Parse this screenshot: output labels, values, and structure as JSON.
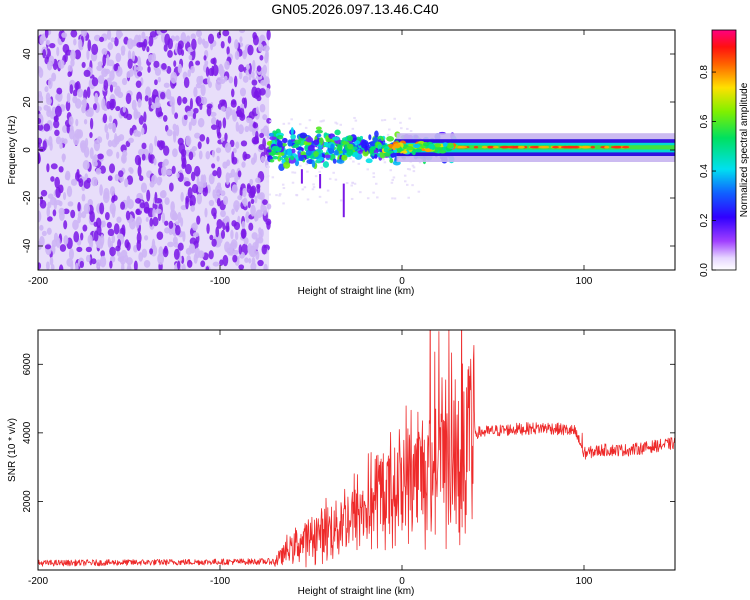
{
  "title": "GN05.2026.097.13.46.C40",
  "chart_data": [
    {
      "type": "heatmap",
      "title": "GN05.2026.097.13.46.C40",
      "xlabel": "Height of straight line (km)",
      "ylabel": "Frequency (Hz)",
      "xlim": [
        -200,
        150
      ],
      "ylim": [
        -50,
        50
      ],
      "xticks": [
        -200,
        -100,
        0,
        100
      ],
      "yticks": [
        -40,
        -20,
        0,
        20,
        40
      ],
      "colorbar": {
        "label": "Normalized spectral amplitude",
        "range": [
          0,
          0.97
        ],
        "ticks": [
          0.0,
          0.2,
          0.4,
          0.6,
          0.8
        ],
        "colormap": "rainbow (white-purple-blue-cyan-green-yellow-red-pink)"
      },
      "regions": [
        {
          "x": [
            -200,
            -73
          ],
          "description": "scattered low-amplitude noise across all frequencies",
          "amplitude": 0.1
        },
        {
          "x": [
            -73,
            30
          ],
          "description": "turbulent signal near 0 Hz, spread roughly -12 to +8 Hz",
          "amplitude": 0.45
        },
        {
          "x": [
            30,
            150
          ],
          "description": "narrow strong band centered near 1 Hz",
          "amplitude": 0.9
        }
      ]
    },
    {
      "type": "line",
      "xlabel": "Height of straight line (km)",
      "ylabel": "SNR (10 * v/v)",
      "xlim": [
        -200,
        150
      ],
      "ylim": [
        0,
        7000
      ],
      "xticks": [
        -200,
        -100,
        0,
        100
      ],
      "yticks": [
        2000,
        4000,
        6000
      ],
      "color": "#ee2a2a",
      "envelope": {
        "x": [
          -200,
          -70,
          -60,
          -40,
          -20,
          0,
          20,
          40,
          60,
          80,
          95,
          100,
          110,
          125,
          150
        ],
        "y": [
          200,
          250,
          700,
          1200,
          1800,
          2600,
          3300,
          4000,
          4100,
          4150,
          4050,
          3400,
          3500,
          3500,
          3700
        ]
      }
    }
  ],
  "colors": {
    "line": "#ee2a2a",
    "noise_dark": "#7a18e6",
    "noise_light": "#cdb5f5"
  }
}
